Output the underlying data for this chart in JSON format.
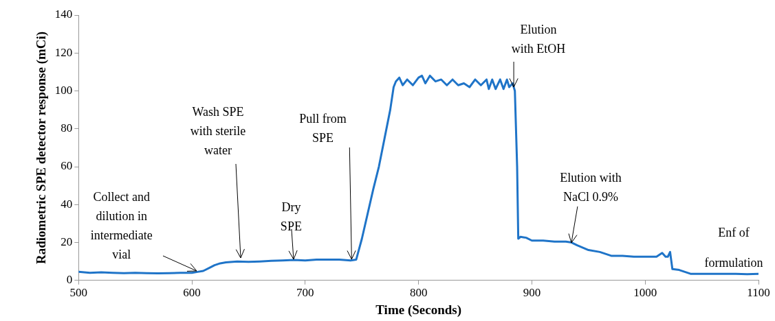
{
  "chart_data": {
    "type": "line",
    "xlabel": "Time (Seconds)",
    "ylabel": "Radiometric SPE detector response (mCi)",
    "xlim": [
      500,
      1100
    ],
    "xticks": [
      500,
      600,
      700,
      800,
      900,
      1000,
      1100
    ],
    "ylim": [
      0,
      140
    ],
    "yticks": [
      0,
      20,
      40,
      60,
      80,
      100,
      120,
      140
    ],
    "grid": false,
    "legend": false,
    "marker": "none",
    "line_style": "solid",
    "series": [
      {
        "color": "#1f74c8",
        "x": [
          500,
          510,
          520,
          530,
          540,
          550,
          560,
          570,
          580,
          590,
          600,
          605,
          610,
          615,
          620,
          625,
          630,
          640,
          650,
          660,
          670,
          680,
          690,
          700,
          710,
          720,
          730,
          740,
          745,
          750,
          755,
          760,
          765,
          770,
          775,
          778,
          780,
          783,
          786,
          790,
          795,
          800,
          803,
          806,
          810,
          815,
          820,
          825,
          830,
          835,
          840,
          845,
          850,
          855,
          860,
          862,
          865,
          868,
          872,
          875,
          878,
          880,
          883,
          885,
          887,
          888,
          890,
          895,
          900,
          910,
          920,
          930,
          935,
          940,
          950,
          960,
          970,
          980,
          990,
          1000,
          1010,
          1015,
          1018,
          1020,
          1022,
          1024,
          1030,
          1040,
          1050,
          1060,
          1070,
          1080,
          1090,
          1100
        ],
        "values": [
          4.5,
          4,
          4.3,
          4,
          3.8,
          4,
          3.8,
          3.7,
          3.8,
          4,
          4,
          4.5,
          5,
          6.5,
          8,
          9,
          9.5,
          10,
          9.8,
          10,
          10.3,
          10.5,
          10.8,
          10.5,
          11,
          11,
          11,
          10.5,
          11,
          22,
          35,
          48,
          60,
          75,
          90,
          102,
          105,
          107,
          103,
          106,
          103,
          107,
          108,
          104,
          108,
          105,
          106,
          103,
          106,
          103,
          104,
          102,
          106,
          103,
          106,
          101,
          106,
          101,
          106,
          101,
          106,
          102,
          104,
          100,
          60,
          22,
          23,
          22.5,
          21,
          21,
          20.5,
          20.5,
          20,
          18.5,
          16,
          15,
          13,
          13,
          12.5,
          12.5,
          12.5,
          14.5,
          12.5,
          12.5,
          15,
          6,
          5.5,
          3.5,
          3.5,
          3.5,
          3.5,
          3.5,
          3.3,
          3.5
        ]
      }
    ],
    "annotations": [
      {
        "text": "Collect and\ndilution in\nintermediate\nvial",
        "x": 604,
        "y": 5
      },
      {
        "text": "Wash SPE\nwith sterile\nwater",
        "x": 643,
        "y": 12
      },
      {
        "text": "Dry\nSPE",
        "x": 690,
        "y": 11
      },
      {
        "text": "Pull from\nSPE",
        "x": 741,
        "y": 11
      },
      {
        "text": "Elution\nwith EtOH",
        "x": 884,
        "y": 102
      },
      {
        "text": "Elution with\nNaCl 0.9%",
        "x": 935,
        "y": 20
      },
      "Enf of\n\nformulation"
    ]
  }
}
